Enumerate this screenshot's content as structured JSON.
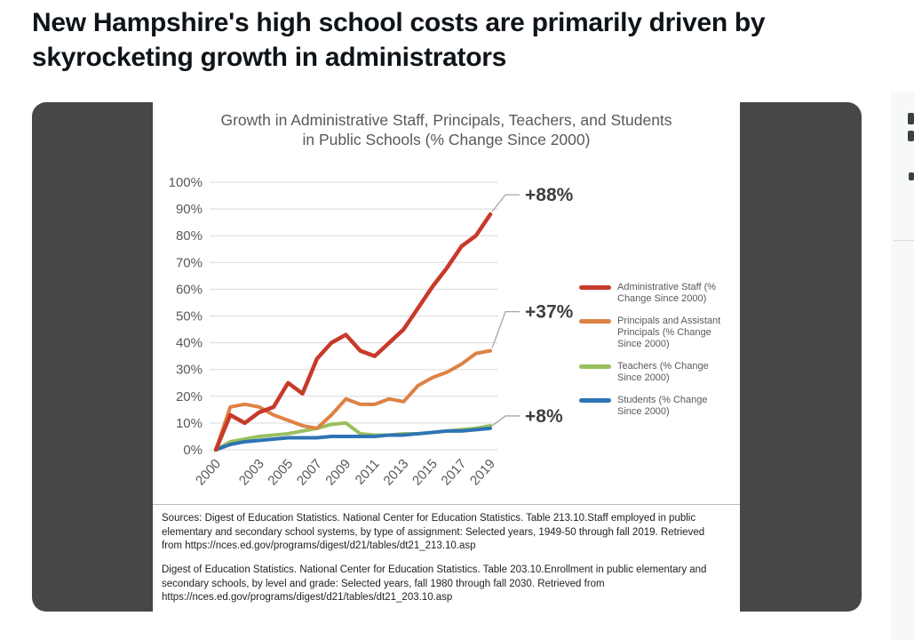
{
  "page": {
    "headline": "New Hampshire's high school costs are primarily driven by skyrocketing growth in administrators"
  },
  "chart": {
    "title": "Growth in Administrative Staff, Principals, Teachers, and Students in Public Schools (% Change Since 2000)"
  },
  "chart_data": {
    "type": "line",
    "title": "Growth in Administrative Staff, Principals, Teachers, and Students in Public Schools (% Change Since 2000)",
    "years": [
      2000,
      2001,
      2002,
      2003,
      2004,
      2005,
      2006,
      2007,
      2008,
      2009,
      2010,
      2011,
      2012,
      2013,
      2014,
      2015,
      2016,
      2017,
      2018,
      2019
    ],
    "x_tick_labels": [
      "2000",
      "2003",
      "2005",
      "2007",
      "2009",
      "2011",
      "2013",
      "2015",
      "2017",
      "2019"
    ],
    "ylim": [
      0,
      100
    ],
    "y_ticks": [
      "0%",
      "10%",
      "20%",
      "30%",
      "40%",
      "50%",
      "60%",
      "70%",
      "80%",
      "90%",
      "100%"
    ],
    "grid": true,
    "legend_position": "right",
    "series": [
      {
        "name": "Administrative Staff (% Change Since 2000)",
        "color": "#c73a2a",
        "values": [
          0,
          13,
          10,
          14,
          16,
          25,
          21,
          34,
          40,
          43,
          37,
          35,
          40,
          45,
          53,
          61,
          68,
          76,
          80,
          88
        ]
      },
      {
        "name": "Principals and Assistant Principals (% Change Since 2000)",
        "color": "#dd8244",
        "values": [
          0,
          16,
          17,
          16,
          13,
          11,
          9,
          8,
          13,
          19,
          17,
          17,
          19,
          18,
          24,
          27,
          29,
          32,
          36,
          37
        ]
      },
      {
        "name": "Teachers (% Change Since 2000)",
        "color": "#98c05c",
        "values": [
          0,
          3,
          4,
          5,
          5.5,
          6,
          7,
          8,
          9.5,
          10,
          6,
          5.5,
          5.5,
          6,
          6,
          6.5,
          7,
          7.5,
          8,
          9
        ]
      },
      {
        "name": "Students (% Change Since 2000)",
        "color": "#2e74b5",
        "values": [
          0,
          2,
          3,
          3.5,
          4,
          4.5,
          4.5,
          4.5,
          5,
          5,
          5,
          5,
          5.5,
          5.5,
          6,
          6.5,
          7,
          7,
          7.5,
          8
        ]
      }
    ],
    "annotations": [
      {
        "text": "+88%",
        "series_index": 0
      },
      {
        "text": "+37%",
        "series_index": 1
      },
      {
        "text": "+8%",
        "series_index": 3
      }
    ]
  },
  "sources": {
    "para1": "Sources: Digest of Education Statistics. National Center for Education Statistics. Table 213.10.Staff employed in public elementary and secondary school systems, by type of assignment: Selected years, 1949-50 through fall 2019. Retrieved from https://nces.ed.gov/programs/digest/d21/tables/dt21_213.10.asp",
    "para2": "Digest of Education Statistics. National Center for Education Statistics. Table 203.10.Enrollment in public elementary and secondary schools, by level and grade: Selected years, fall 1980 through fall 2030. Retrieved from https://nces.ed.gov/programs/digest/d21/tables/dt21_203.10.asp"
  }
}
